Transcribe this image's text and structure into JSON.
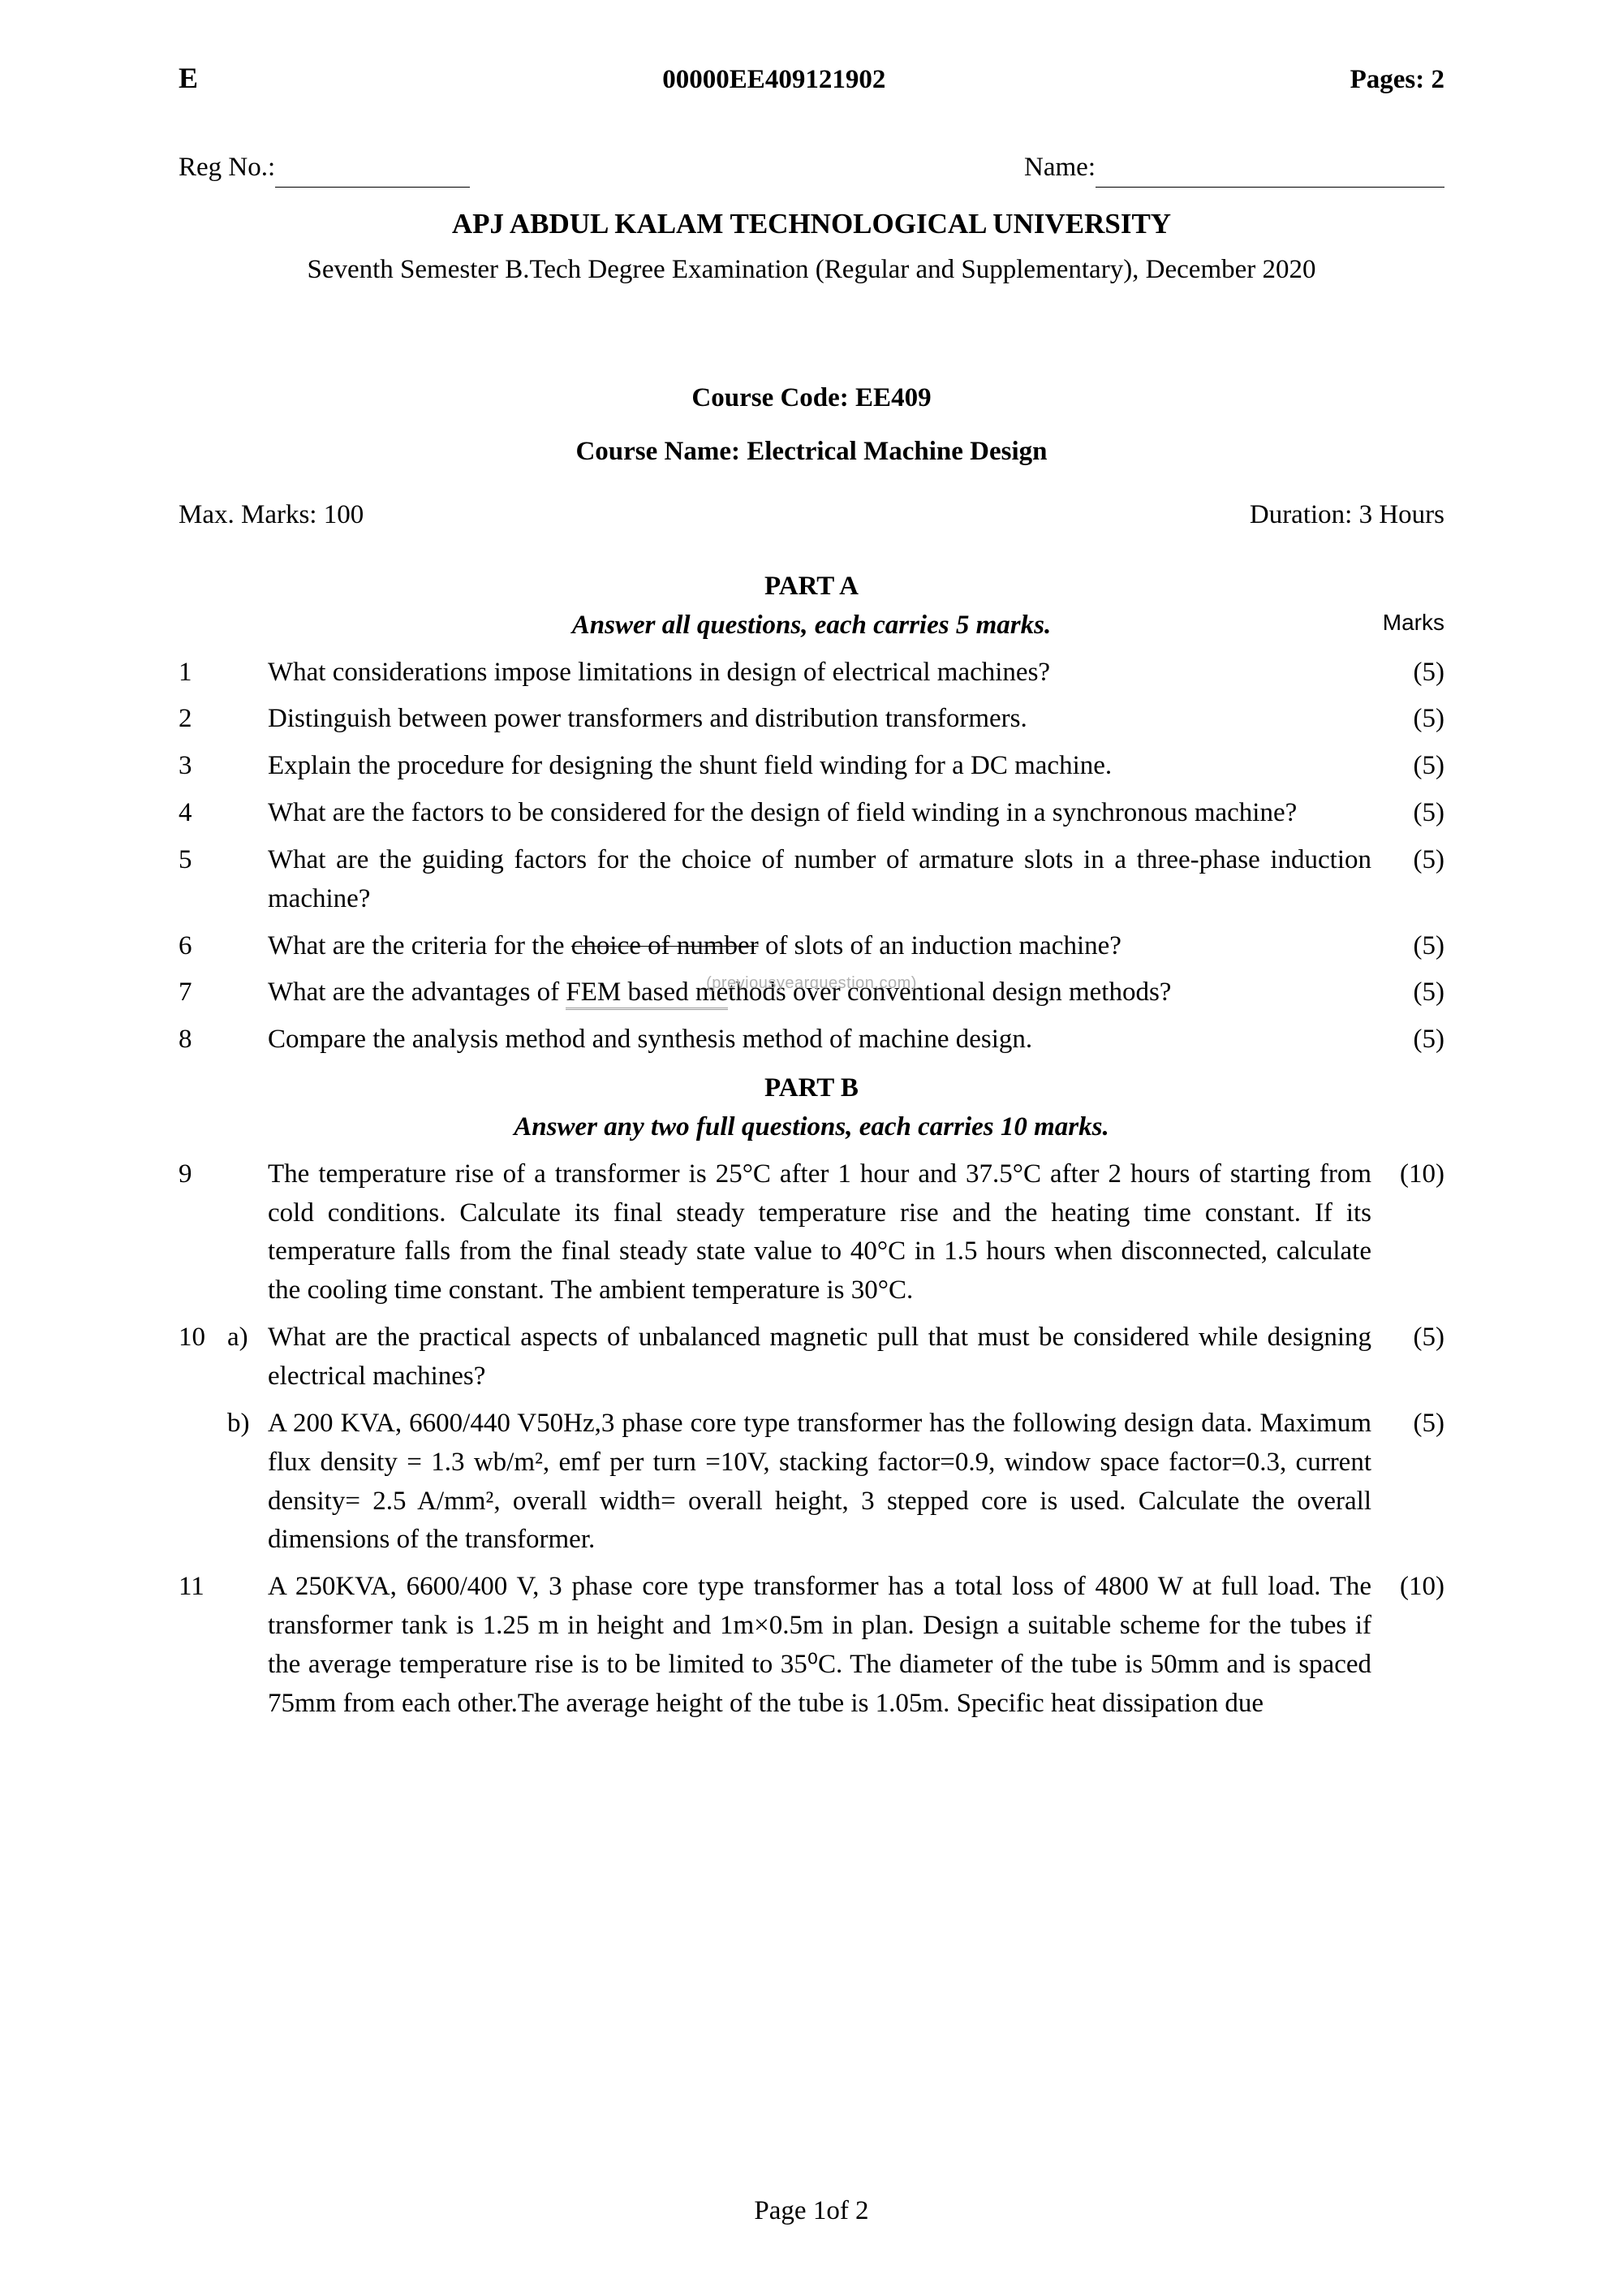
{
  "header": {
    "letter": "E",
    "doc_id": "00000EE409121902",
    "pages": "Pages: 2"
  },
  "reg_label": "Reg No.:",
  "name_label": "Name:",
  "university": "APJ ABDUL KALAM TECHNOLOGICAL UNIVERSITY",
  "exam_line": "Seventh Semester B.Tech Degree Examination (Regular and Supplementary), December 2020",
  "course_code": "Course Code: EE409",
  "course_name_label": "Course Name:",
  "course_name": "Electrical Machine Design",
  "max_marks": "Max. Marks: 100",
  "duration": "Duration: 3 Hours",
  "part_a": {
    "title": "PART A",
    "instruction": "Answer all questions, each carries 5 marks.",
    "marks_label": "Marks",
    "questions": [
      {
        "num": "1",
        "sub": "",
        "text": "What considerations impose limitations in design of electrical machines?",
        "marks": "(5)"
      },
      {
        "num": "2",
        "sub": "",
        "text": "Distinguish between power transformers and distribution transformers.",
        "marks": "(5)"
      },
      {
        "num": "3",
        "sub": "",
        "text": "Explain the procedure for designing the shunt field winding for a DC machine.",
        "marks": "(5)"
      },
      {
        "num": "4",
        "sub": "",
        "text": "What are the factors to be considered for the design of field winding in a synchronous machine?",
        "marks": "(5)"
      },
      {
        "num": "5",
        "sub": "",
        "text": "What are the guiding factors for the choice of number of armature slots in a three-phase induction machine?",
        "marks": "(5)"
      },
      {
        "num": "6",
        "sub": "",
        "text_pre": "What are the criteria for the ",
        "text_strike": "choice of number",
        "text_post": " of slots of an induction machine?",
        "marks": "(5)"
      },
      {
        "num": "7",
        "sub": "",
        "text_pre": "What are the advantages of ",
        "text_under": "FEM based me",
        "text_post": "thods over conventional design methods?",
        "marks": "(5)"
      },
      {
        "num": "8",
        "sub": "",
        "text": "Compare the analysis method and synthesis method of machine design.",
        "marks": "(5)"
      }
    ]
  },
  "watermark": "(previousyearquestion.com)",
  "part_b": {
    "title": "PART B",
    "instruction": "Answer any two full questions, each carries 10 marks.",
    "questions": [
      {
        "num": "9",
        "sub": "",
        "text": "The temperature rise of a transformer is 25°C after 1 hour and 37.5°C after 2 hours of starting from cold conditions. Calculate its final steady temperature rise and the heating time constant. If its temperature falls from the final steady state value to 40°C in 1.5 hours when disconnected, calculate the cooling time constant. The ambient temperature is 30°C.",
        "marks": "(10)"
      },
      {
        "num": "10",
        "sub": "a)",
        "text": "What are the practical aspects of unbalanced magnetic pull that must be considered while designing electrical machines?",
        "marks": "(5)"
      },
      {
        "num": "",
        "sub": "b)",
        "text": "A 200 KVA, 6600/440 V50Hz,3 phase core type transformer has the following design data. Maximum flux density = 1.3 wb/m², emf per turn =10V, stacking factor=0.9, window space factor=0.3, current density= 2.5 A/mm², overall width= overall height, 3 stepped core is used. Calculate the overall dimensions of the transformer.",
        "marks": "(5)"
      },
      {
        "num": "11",
        "sub": "",
        "text": "A 250KVA, 6600/400 V, 3 phase core type transformer has a total loss of 4800 W at full load. The transformer tank is 1.25 m in height and 1m×0.5m in plan. Design a suitable scheme for the tubes if the average temperature rise is to be limited to 35⁰C. The diameter of the tube is 50mm and is spaced 75mm from each other.The average height of the tube is 1.05m. Specific heat dissipation due",
        "marks": "(10)"
      }
    ]
  },
  "footer": "Page 1of 2"
}
